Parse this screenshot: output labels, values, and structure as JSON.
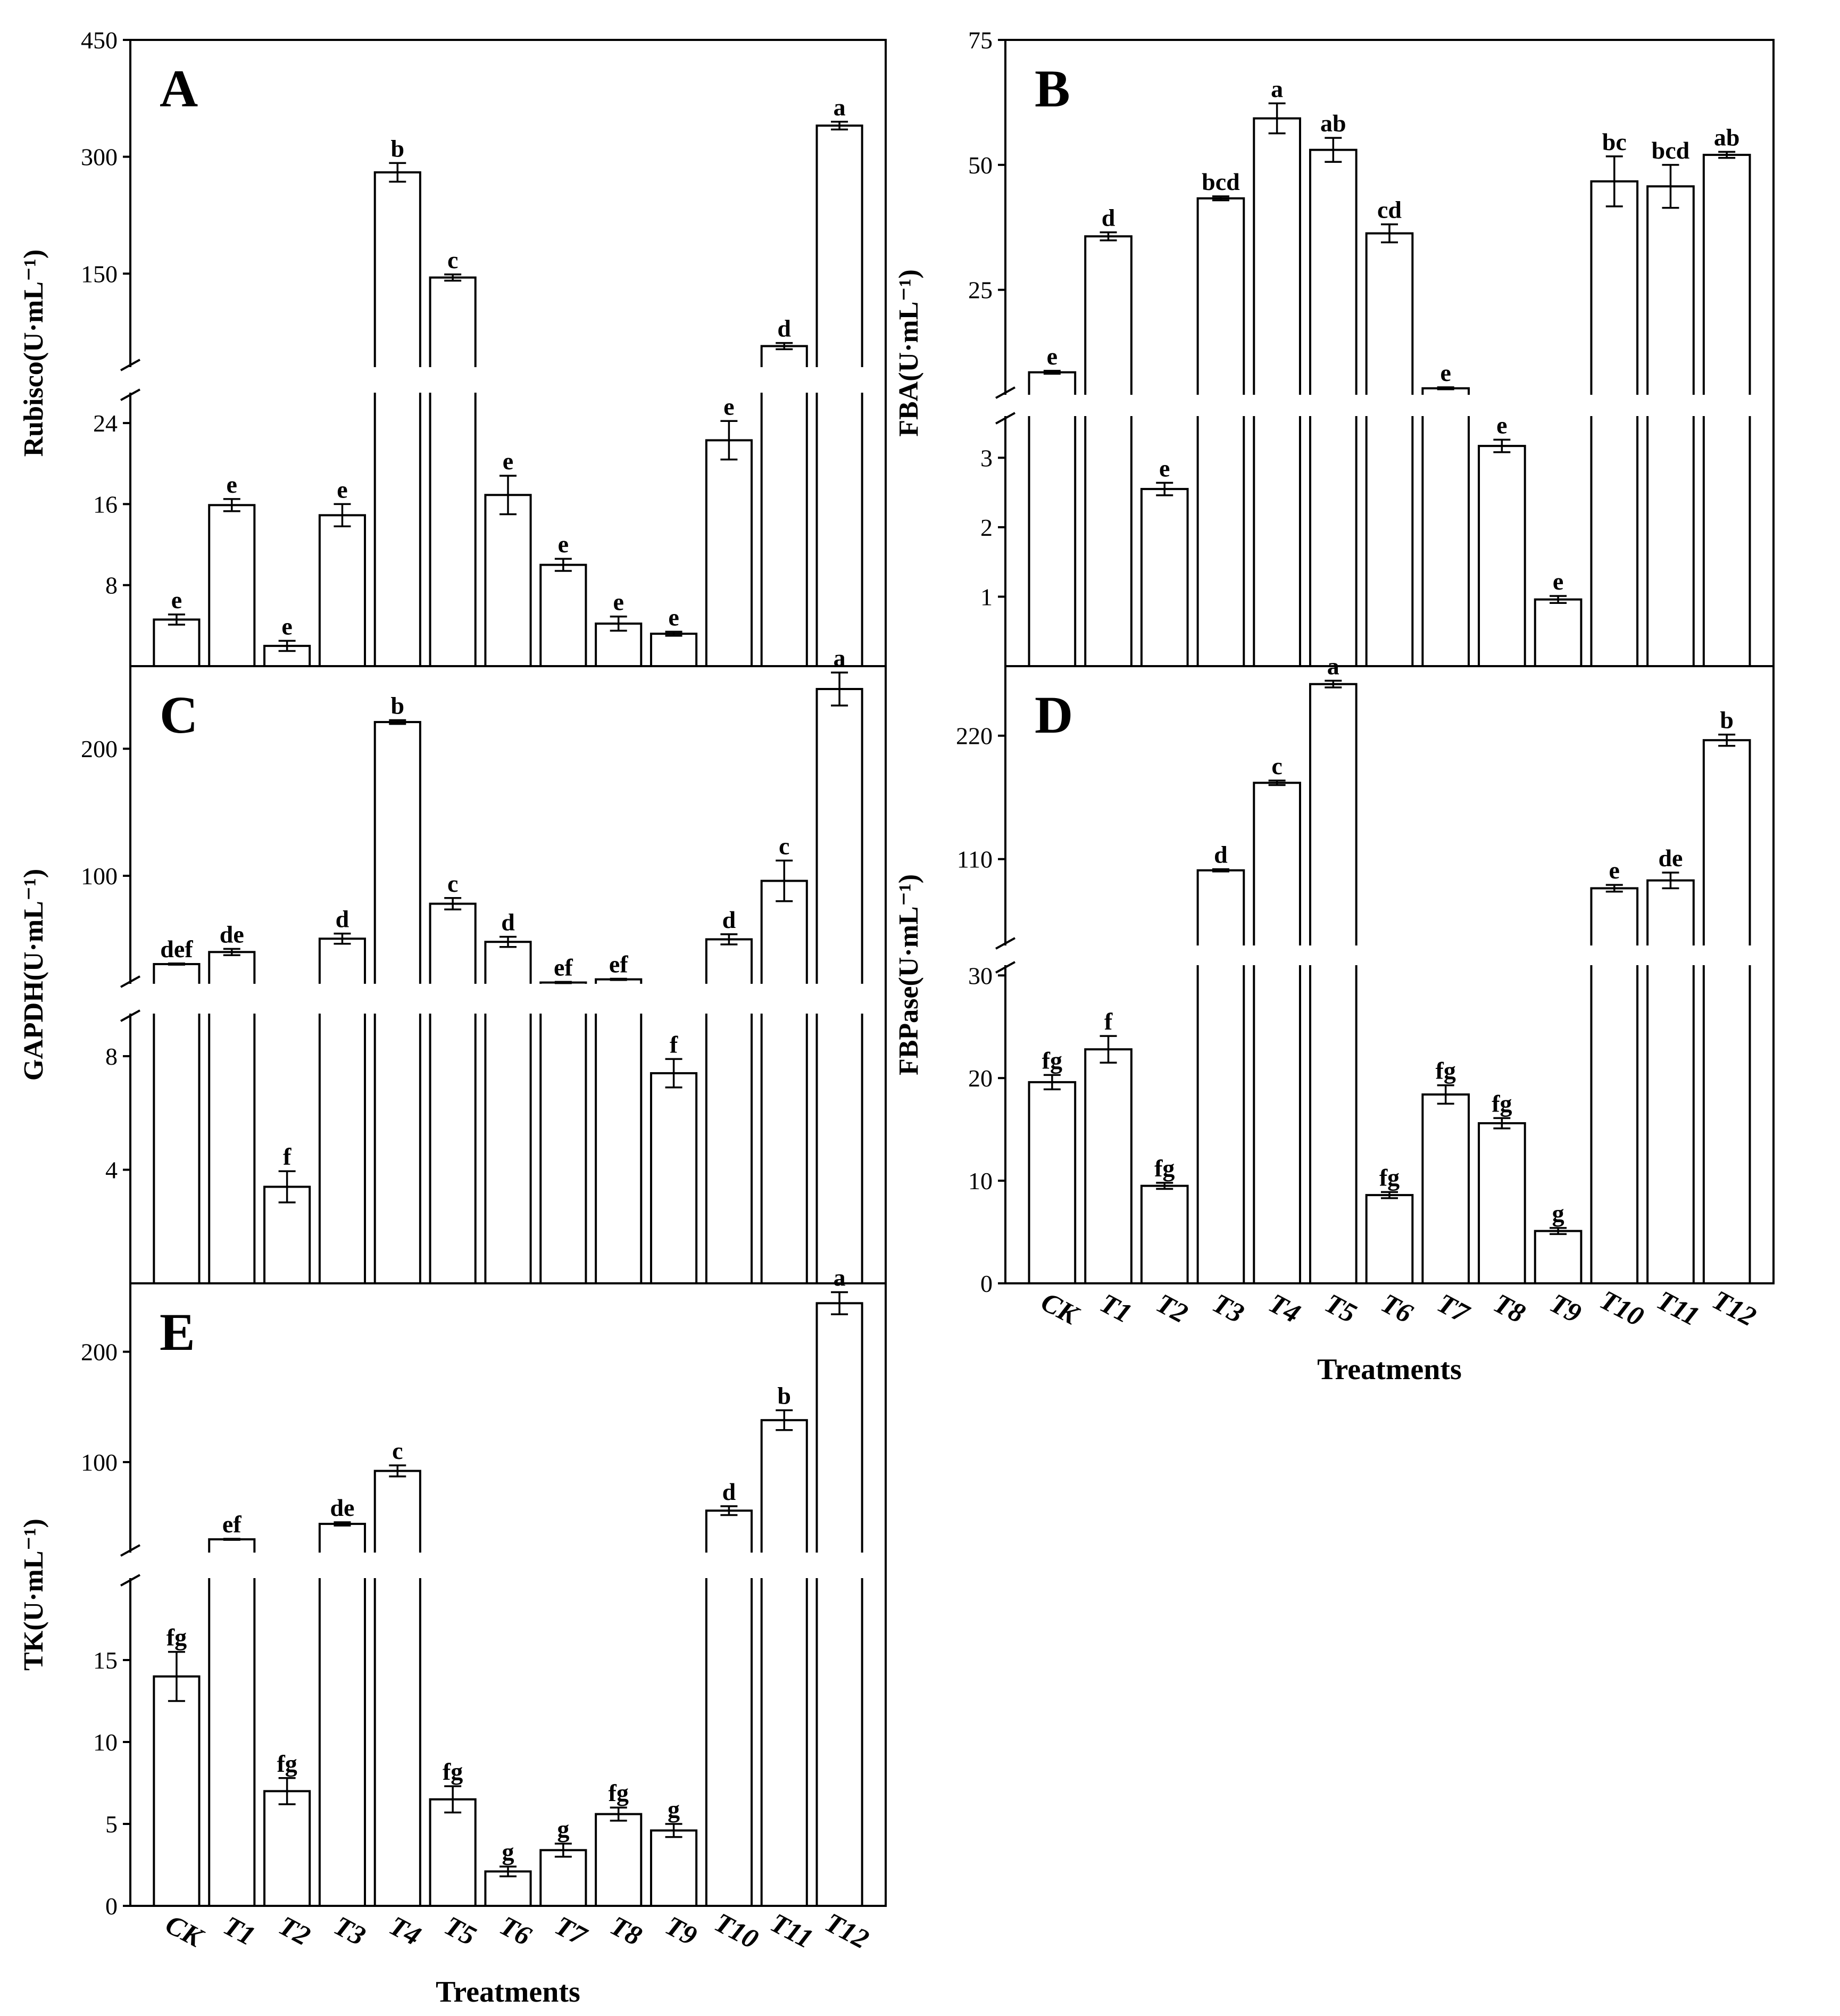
{
  "chart_data": [
    {
      "panel": "A",
      "type": "bar",
      "ylabel": "Rubisco(U·mL⁻¹)",
      "categories": [
        "CK",
        "T1",
        "T2",
        "T3",
        "T4",
        "T5",
        "T6",
        "T7",
        "T8",
        "T9",
        "T10",
        "T11",
        "T12"
      ],
      "values": [
        4.6,
        15.9,
        2.0,
        14.9,
        280,
        145,
        16.9,
        10.0,
        4.2,
        3.2,
        22.3,
        57,
        340
      ],
      "errors": [
        0.5,
        0.6,
        0.5,
        1.1,
        12,
        4,
        1.9,
        0.6,
        0.7,
        0.2,
        1.9,
        4,
        5
      ],
      "letters": [
        "e",
        "e",
        "e",
        "e",
        "b",
        "c",
        "e",
        "e",
        "e",
        "e",
        "e",
        "d",
        "a"
      ],
      "lower_ticks": [
        "8",
        "16",
        "24"
      ],
      "upper_ticks": [
        "150",
        "300",
        "450"
      ],
      "lower_range": [
        0,
        27
      ],
      "upper_range": [
        30,
        450
      ]
    },
    {
      "panel": "B",
      "type": "bar",
      "ylabel": "FBA(U·mL⁻¹)",
      "categories": [
        "CK",
        "T1",
        "T2",
        "T3",
        "T4",
        "T5",
        "T6",
        "T7",
        "T8",
        "T9",
        "T10",
        "T11",
        "T12"
      ],
      "values": [
        8.5,
        35.7,
        2.55,
        43.3,
        59.3,
        53.0,
        36.3,
        5.3,
        3.17,
        0.96,
        46.7,
        45.7,
        52.0
      ],
      "errors": [
        0.3,
        0.8,
        0.09,
        0.4,
        3.0,
        2.4,
        1.8,
        0.2,
        0.09,
        0.05,
        5.0,
        4.3,
        0.6
      ],
      "letters": [
        "e",
        "d",
        "e",
        "bcd",
        "a",
        "ab",
        "cd",
        "e",
        "e",
        "e",
        "bc",
        "bcd",
        "ab"
      ],
      "lower_ticks": [
        "1",
        "2",
        "3"
      ],
      "upper_ticks": [
        "25",
        "50",
        "75"
      ],
      "lower_range": [
        0,
        3.6
      ],
      "upper_range": [
        4,
        75
      ]
    },
    {
      "panel": "C",
      "type": "bar",
      "ylabel": "GAPDH(U·mL⁻¹)",
      "categories": [
        "CK",
        "T1",
        "T2",
        "T3",
        "T4",
        "T5",
        "T6",
        "T7",
        "T8",
        "T9",
        "T10",
        "T11",
        "T12"
      ],
      "values": [
        30.5,
        40.0,
        3.4,
        50.5,
        221,
        78,
        48.0,
        16.0,
        18.5,
        7.4,
        50.0,
        96,
        247
      ],
      "errors": [
        0.5,
        2.5,
        0.55,
        4.0,
        1.5,
        4.5,
        4.0,
        0.5,
        0.5,
        0.5,
        4.0,
        16,
        13
      ],
      "letters": [
        "def",
        "de",
        "f",
        "d",
        "b",
        "c",
        "d",
        "ef",
        "ef",
        "f",
        "d",
        "c",
        "a"
      ],
      "lower_ticks": [
        "4",
        "8"
      ],
      "upper_ticks": [
        "100",
        "200"
      ],
      "lower_range": [
        0,
        9.5
      ],
      "upper_range": [
        15,
        265
      ]
    },
    {
      "panel": "D",
      "type": "bar",
      "ylabel": "FBPase(U·mL⁻¹)",
      "xlabel": "Treatments",
      "categories": [
        "CK",
        "T1",
        "T2",
        "T3",
        "T4",
        "T5",
        "T6",
        "T7",
        "T8",
        "T9",
        "T10",
        "T11",
        "T12"
      ],
      "values": [
        19.6,
        22.8,
        9.5,
        100.0,
        178.0,
        266.0,
        8.6,
        18.4,
        15.6,
        5.1,
        84.0,
        91.0,
        216.0
      ],
      "errors": [
        0.7,
        1.3,
        0.3,
        1.0,
        2.0,
        3.0,
        0.3,
        0.9,
        0.5,
        0.3,
        3.0,
        7.0,
        5.0
      ],
      "letters": [
        "fg",
        "f",
        "fg",
        "d",
        "c",
        "a",
        "fg",
        "fg",
        "fg",
        "g",
        "e",
        "de",
        "b"
      ],
      "lower_ticks": [
        "0",
        "10",
        "20",
        "30"
      ],
      "upper_ticks": [
        "110",
        "220"
      ],
      "lower_range": [
        0,
        31
      ],
      "upper_range": [
        33,
        282
      ]
    },
    {
      "panel": "E",
      "type": "bar",
      "ylabel": "TK(U·mL⁻¹)",
      "xlabel": "Treatments",
      "categories": [
        "CK",
        "T1",
        "T2",
        "T3",
        "T4",
        "T5",
        "T6",
        "T7",
        "T8",
        "T9",
        "T10",
        "T11",
        "T12"
      ],
      "values": [
        14.0,
        30.0,
        7.0,
        44.0,
        92.0,
        6.5,
        2.1,
        3.4,
        5.6,
        4.6,
        56.0,
        138.0,
        244.0
      ],
      "errors": [
        1.5,
        0.5,
        0.8,
        1.5,
        5.0,
        0.8,
        0.3,
        0.4,
        0.4,
        0.4,
        4.0,
        9.0,
        10.0
      ],
      "letters": [
        "fg",
        "ef",
        "fg",
        "de",
        "c",
        "fg",
        "g",
        "g",
        "fg",
        "g",
        "d",
        "b",
        "a"
      ],
      "lower_ticks": [
        "0",
        "5",
        "10",
        "15"
      ],
      "upper_ticks": [
        "100",
        "200"
      ],
      "lower_range": [
        0,
        20
      ],
      "upper_range": [
        18,
        262
      ]
    }
  ]
}
